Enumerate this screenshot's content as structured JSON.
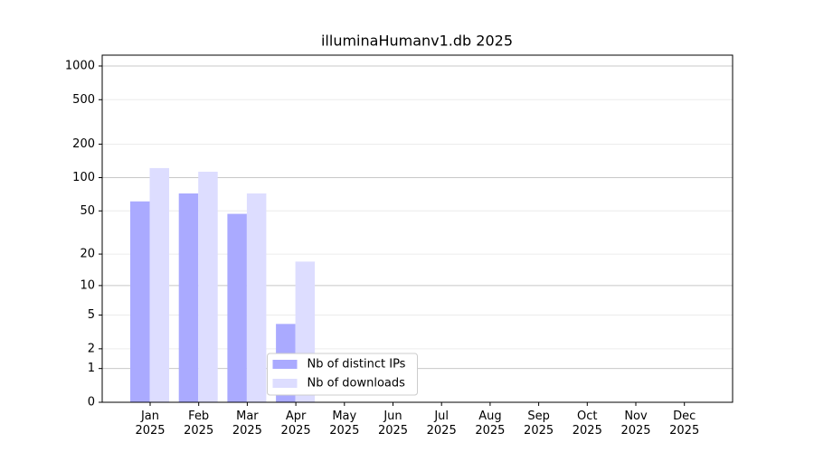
{
  "chart_data": {
    "type": "bar",
    "title": "illuminaHumanv1.db 2025",
    "categories": [
      "Jan\n2025",
      "Feb\n2025",
      "Mar\n2025",
      "Apr\n2025",
      "May\n2025",
      "Jun\n2025",
      "Jul\n2025",
      "Aug\n2025",
      "Sep\n2025",
      "Oct\n2025",
      "Nov\n2025",
      "Dec\n2025"
    ],
    "series": [
      {
        "name": "Nb of distinct IPs",
        "color": "#aaaaff",
        "values": [
          61,
          72,
          47,
          4,
          null,
          null,
          null,
          null,
          null,
          null,
          null,
          null
        ]
      },
      {
        "name": "Nb of downloads",
        "color": "#ddddff",
        "values": [
          122,
          113,
          72,
          17,
          null,
          null,
          null,
          null,
          null,
          null,
          null,
          null
        ]
      }
    ],
    "yscale": "log1p",
    "ylim": [
      0,
      1250
    ],
    "yticks": [
      0,
      1,
      2,
      5,
      10,
      20,
      50,
      100,
      200,
      500,
      1000
    ],
    "grid": true,
    "legend": "lower center"
  }
}
